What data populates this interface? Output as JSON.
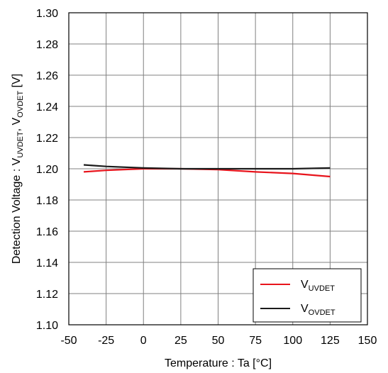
{
  "chart_data": {
    "type": "line",
    "xlabel": "Temperature : Ta [°C]",
    "ylabel": {
      "prefix": "Detection Voltage : V",
      "sub1": "UVDET",
      "mid": ",  V",
      "sub2": "OVDET",
      "suffix": " [V]"
    },
    "xlim": [
      -50,
      150
    ],
    "ylim": [
      1.1,
      1.3
    ],
    "xticks": [
      -50,
      -25,
      0,
      25,
      50,
      75,
      100,
      125,
      150
    ],
    "xtick_labels": [
      "-50",
      "-25",
      "0",
      "25",
      "50",
      "75",
      "100",
      "125",
      "150"
    ],
    "yticks": [
      1.1,
      1.12,
      1.14,
      1.16,
      1.18,
      1.2,
      1.22,
      1.24,
      1.26,
      1.28,
      1.3
    ],
    "ytick_labels": [
      "1.10",
      "1.12",
      "1.14",
      "1.16",
      "1.18",
      "1.20",
      "1.22",
      "1.24",
      "1.26",
      "1.28",
      "1.30"
    ],
    "grid": true,
    "legend_position": "bottom-right",
    "series": [
      {
        "name_main": "V",
        "name_sub": "UVDET",
        "color": "#e8141c",
        "x": [
          -40,
          -25,
          0,
          25,
          50,
          75,
          100,
          125
        ],
        "y": [
          1.198,
          1.199,
          1.2,
          1.2,
          1.1995,
          1.198,
          1.197,
          1.195
        ]
      },
      {
        "name_main": "V",
        "name_sub": "OVDET",
        "color": "#1a1a1a",
        "x": [
          -40,
          -25,
          0,
          25,
          50,
          75,
          100,
          125
        ],
        "y": [
          1.2025,
          1.2015,
          1.2005,
          1.2,
          1.2,
          1.2,
          1.2,
          1.2005
        ]
      }
    ]
  }
}
